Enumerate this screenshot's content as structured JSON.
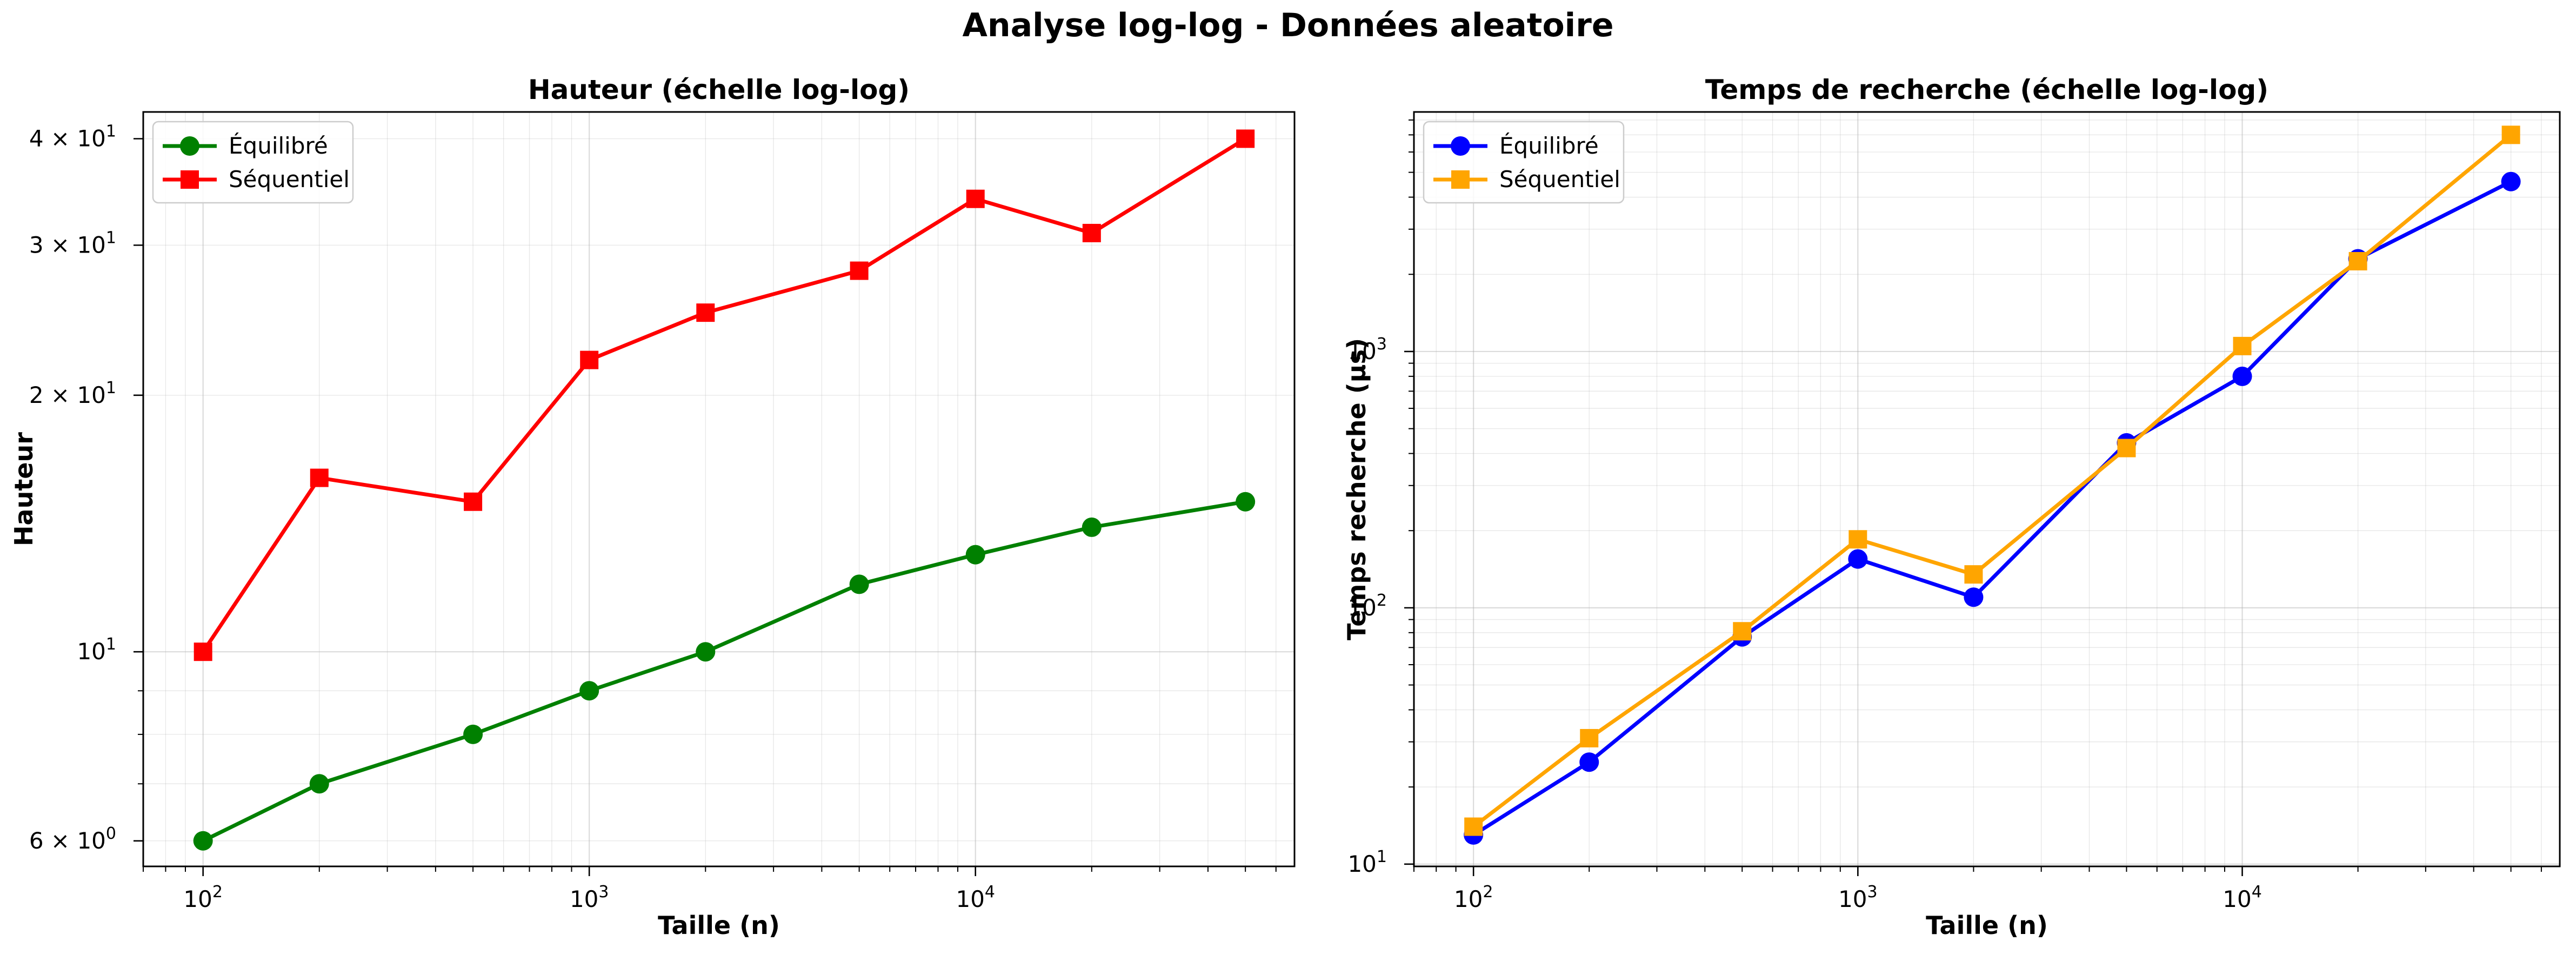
{
  "figure": {
    "title": "Analyse log-log - Données aleatoire"
  },
  "chart_data": [
    {
      "type": "line",
      "title": "Hauteur (échelle log-log)",
      "xlabel": "Taille (n)",
      "ylabel": "Hauteur",
      "xscale": "log",
      "yscale": "log",
      "xlim": [
        70,
        67000
      ],
      "ylim": [
        5.6,
        43
      ],
      "x_ticks": [
        100,
        1000,
        10000
      ],
      "x_tick_labels": [
        {
          "base": "10",
          "exp": "2"
        },
        {
          "base": "10",
          "exp": "3"
        },
        {
          "base": "10",
          "exp": "4"
        }
      ],
      "y_ticks": [
        6,
        10,
        20,
        30,
        40
      ],
      "y_tick_labels": [
        {
          "base": "6 × 10",
          "exp": "0"
        },
        {
          "base": "10",
          "exp": "1"
        },
        {
          "base": "2 × 10",
          "exp": "1"
        },
        {
          "base": "3 × 10",
          "exp": "1"
        },
        {
          "base": "4 × 10",
          "exp": "1"
        }
      ],
      "grid": true,
      "legend_position": "top-left",
      "x": [
        100,
        200,
        500,
        1000,
        2000,
        5000,
        10000,
        20000,
        50000
      ],
      "series": [
        {
          "name": "Équilibré",
          "color": "#008000",
          "marker": "circle",
          "values": [
            6,
            7,
            8,
            9,
            10,
            12,
            13,
            14,
            15
          ]
        },
        {
          "name": "Séquentiel",
          "color": "#ff0000",
          "marker": "square",
          "values": [
            10,
            16,
            15,
            22,
            25,
            28,
            34,
            31,
            40
          ]
        }
      ]
    },
    {
      "type": "line",
      "title": "Temps de recherche (échelle log-log)",
      "xlabel": "Taille (n)",
      "ylabel": "Temps recherche (µs)",
      "xscale": "log",
      "yscale": "log",
      "xlim": [
        70,
        67000
      ],
      "ylim": [
        9.8,
        8600
      ],
      "x_ticks": [
        100,
        1000,
        10000
      ],
      "x_tick_labels": [
        {
          "base": "10",
          "exp": "2"
        },
        {
          "base": "10",
          "exp": "3"
        },
        {
          "base": "10",
          "exp": "4"
        }
      ],
      "y_ticks": [
        10,
        100,
        1000
      ],
      "y_tick_labels": [
        {
          "base": "10",
          "exp": "1"
        },
        {
          "base": "10",
          "exp": "2"
        },
        {
          "base": "10",
          "exp": "3"
        }
      ],
      "grid": true,
      "legend_position": "top-left",
      "x": [
        100,
        200,
        500,
        1000,
        2000,
        5000,
        10000,
        20000,
        50000
      ],
      "series": [
        {
          "name": "Équilibré",
          "color": "#0000ff",
          "marker": "circle",
          "values": [
            13,
            25,
            77,
            155,
            110,
            440,
            800,
            2300,
            4600
          ]
        },
        {
          "name": "Séquentiel",
          "color": "#ffa500",
          "marker": "square",
          "values": [
            14,
            31,
            81,
            185,
            135,
            420,
            1050,
            2250,
            7000
          ]
        }
      ]
    }
  ]
}
